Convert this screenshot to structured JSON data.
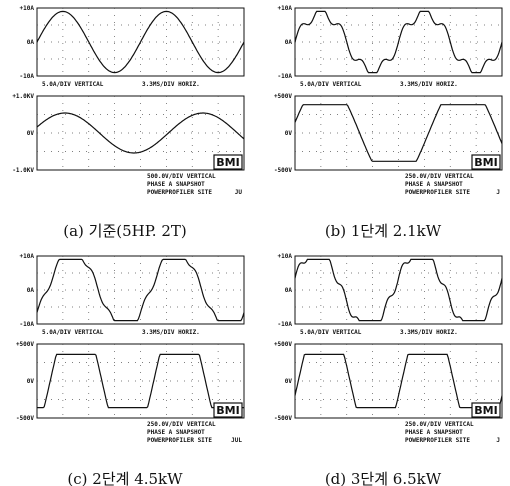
{
  "panels": [
    {
      "caption": "(a) 기준(5HP. 2T)",
      "top": {
        "ymax": "+10A",
        "ymid": "0A",
        "ymin": "-10A",
        "vertical": "5.0A/DIV VERTICAL",
        "horizontal": "3.3MS/DIV HORIZ."
      },
      "bottom": {
        "ymax": "+1.0KV",
        "ymid": "0V",
        "ymin": "-1.0KV",
        "lines": [
          "500.0V/DIV VERTICAL",
          "PHASE A SNAPSHOT",
          "POWERPROFILER SITE"
        ],
        "side": "JU"
      },
      "logo": "BMI"
    },
    {
      "caption": "(b) 1단계 2.1kW",
      "top": {
        "ymax": "+10A",
        "ymid": "0A",
        "ymin": "-10A",
        "vertical": "5.0A/DIV VERTICAL",
        "horizontal": "3.3MS/DIV HORIZ."
      },
      "bottom": {
        "ymax": "+500V",
        "ymid": "0V",
        "ymin": "-500V",
        "lines": [
          "250.0V/DIV VERTICAL",
          "PHASE A SNAPSHOT",
          "POWERPROFILER SITE"
        ],
        "side": "J"
      },
      "logo": "BMI"
    },
    {
      "caption": "(c) 2단계 4.5kW",
      "top": {
        "ymax": "+10A",
        "ymid": "0A",
        "ymin": "-10A",
        "vertical": "5.0A/DIV VERTICAL",
        "horizontal": "3.3MS/DIV HORIZ."
      },
      "bottom": {
        "ymax": "+500V",
        "ymid": "0V",
        "ymin": "-500V",
        "lines": [
          "250.0V/DIV VERTICAL",
          "PHASE A SNAPSHOT",
          "POWERPROFILER SITE"
        ],
        "side": "JUL"
      },
      "logo": "BMI"
    },
    {
      "caption": "(d) 3단계 6.5kW",
      "top": {
        "ymax": "+10A",
        "ymid": "0A",
        "ymin": "-10A",
        "vertical": "5.0A/DIV VERTICAL",
        "horizontal": "3.3MS/DIV HORIZ."
      },
      "bottom": {
        "ymax": "+500V",
        "ymid": "0V",
        "ymin": "-500V",
        "lines": [
          "250.0V/DIV VERTICAL",
          "PHASE A SNAPSHOT",
          "POWERPROFILER SITE"
        ],
        "side": "J"
      },
      "logo": "BMI"
    }
  ]
}
